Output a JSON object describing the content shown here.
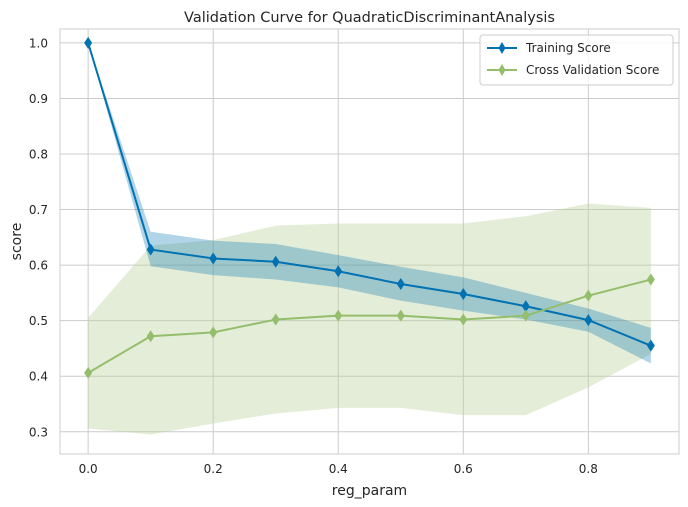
{
  "chart_data": {
    "type": "line",
    "title": "Validation Curve for QuadraticDiscriminantAnalysis",
    "xlabel": "reg_param",
    "ylabel": "score",
    "x": [
      0.0,
      0.1,
      0.2,
      0.3,
      0.4,
      0.5,
      0.6,
      0.7,
      0.8,
      0.9
    ],
    "xlim": [
      -0.045,
      0.945
    ],
    "ylim": [
      0.26,
      1.025
    ],
    "xticks": [
      "0.0",
      "0.2",
      "0.4",
      "0.6",
      "0.8"
    ],
    "xtick_values": [
      0.0,
      0.2,
      0.4,
      0.6,
      0.8
    ],
    "yticks": [
      "0.3",
      "0.4",
      "0.5",
      "0.6",
      "0.7",
      "0.8",
      "0.9",
      "1.0"
    ],
    "ytick_values": [
      0.3,
      0.4,
      0.5,
      0.6,
      0.7,
      0.8,
      0.9,
      1.0
    ],
    "grid": true,
    "legend_position": "top-right",
    "series": [
      {
        "name": "Training Score",
        "color": "#0072b2",
        "marker": "diamond",
        "values": [
          1.0,
          0.628,
          0.612,
          0.606,
          0.589,
          0.566,
          0.548,
          0.526,
          0.501,
          0.455
        ],
        "band_upper": [
          1.0,
          0.66,
          0.644,
          0.638,
          0.618,
          0.597,
          0.578,
          0.55,
          0.522,
          0.487
        ],
        "band_lower": [
          1.0,
          0.598,
          0.582,
          0.574,
          0.56,
          0.536,
          0.518,
          0.502,
          0.48,
          0.423
        ],
        "band_color": "#0072b2"
      },
      {
        "name": "Cross Validation Score",
        "color": "#94be6c",
        "marker": "diamond",
        "values": [
          0.406,
          0.472,
          0.479,
          0.502,
          0.509,
          0.509,
          0.502,
          0.509,
          0.545,
          0.574
        ],
        "band_upper": [
          0.505,
          0.635,
          0.645,
          0.671,
          0.675,
          0.675,
          0.675,
          0.688,
          0.711,
          0.703
        ],
        "band_lower": [
          0.306,
          0.295,
          0.315,
          0.333,
          0.343,
          0.343,
          0.33,
          0.33,
          0.38,
          0.44
        ],
        "band_color": "#b8d39b"
      }
    ]
  }
}
